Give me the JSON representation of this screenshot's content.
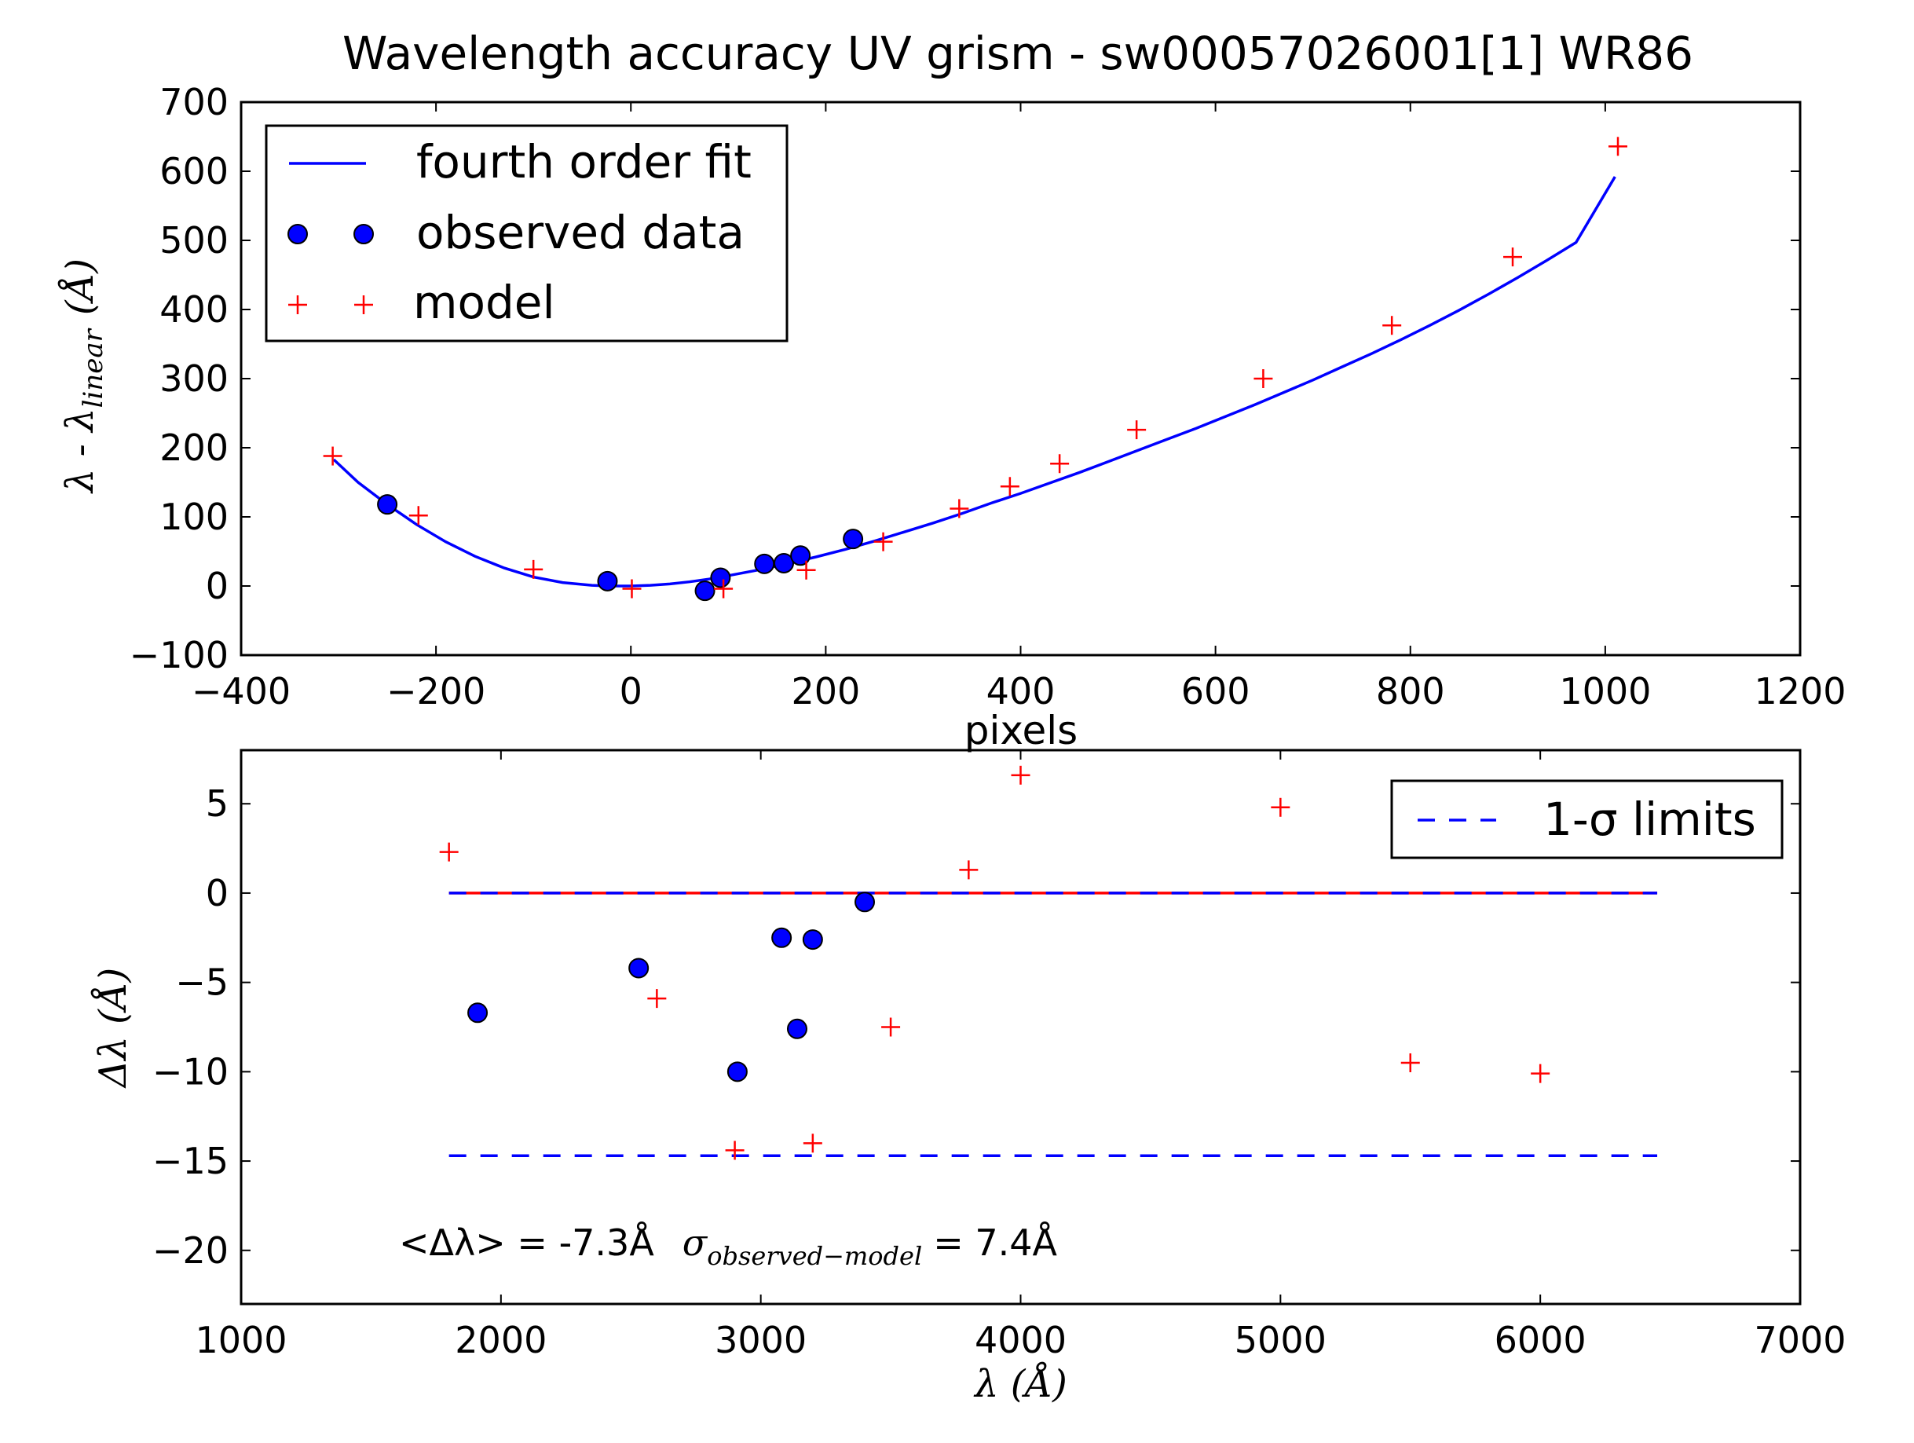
{
  "colors": {
    "fit": "#0000ff",
    "observed": "#0000ff",
    "model": "#ff0000",
    "axes": "#000000"
  },
  "chart_data": [
    {
      "type": "scatter",
      "title": "Wavelength accuracy UV grism - sw00057026001[1] WR86",
      "xlabel": "pixels",
      "ylabel_parts": {
        "lead": "λ - λ",
        "sub": "linear",
        "unit": "(Å)"
      },
      "xlim": [
        -400,
        1200
      ],
      "ylim": [
        -100,
        700
      ],
      "xticks": [
        "−400",
        "−200",
        "0",
        "200",
        "400",
        "600",
        "800",
        "1000",
        "1200"
      ],
      "yticks": [
        "700",
        "600",
        "500",
        "400",
        "300",
        "200",
        "100",
        "0",
        "−100"
      ],
      "grid": false,
      "legend_position": "top-left",
      "legend": [
        "fourth order fit",
        "observed data",
        "model"
      ],
      "series": [
        {
          "name": "fourth order fit",
          "kind": "line",
          "x": [
            -305,
            -280,
            -250,
            -220,
            -190,
            -160,
            -130,
            -100,
            -70,
            -40,
            -20,
            0,
            20,
            40,
            60,
            80,
            100,
            130,
            160,
            190,
            220,
            250,
            280,
            310,
            340,
            370,
            400,
            430,
            460,
            490,
            520,
            550,
            580,
            610,
            640,
            670,
            700,
            730,
            760,
            790,
            820,
            850,
            880,
            910,
            940,
            970,
            1010
          ],
          "y": [
            183,
            150,
            118,
            89,
            64,
            43,
            26,
            13,
            5,
            1,
            0,
            0,
            1,
            3,
            6,
            10,
            15,
            23,
            32,
            42,
            53,
            65,
            78,
            91,
            105,
            120,
            134,
            149,
            164,
            180,
            196,
            212,
            228,
            245,
            262,
            280,
            298,
            317,
            336,
            356,
            377,
            399,
            422,
            446,
            471,
            497,
            592
          ]
        },
        {
          "name": "observed data",
          "kind": "points",
          "x": [
            -250,
            -24,
            76,
            92,
            137,
            157,
            174,
            228
          ],
          "y": [
            118,
            7,
            -7,
            12,
            32,
            33,
            44,
            68
          ]
        },
        {
          "name": "model",
          "kind": "points",
          "x": [
            -306,
            -218,
            -100,
            1,
            95,
            180,
            259,
            337,
            389,
            440,
            519,
            649,
            781,
            905,
            1013
          ],
          "y": [
            188,
            102,
            24,
            -4,
            -4,
            23,
            64,
            112,
            144,
            177,
            226,
            300,
            377,
            476,
            636
          ]
        }
      ]
    },
    {
      "type": "scatter",
      "xlabel": "λ (Å)",
      "ylabel": "Δλ (Å)",
      "xlim": [
        1000,
        7000
      ],
      "ylim": [
        -23,
        8
      ],
      "xticks": [
        "1000",
        "2000",
        "3000",
        "4000",
        "5000",
        "6000",
        "7000"
      ],
      "yticks": [
        "5",
        "0",
        "−5",
        "−10",
        "−15",
        "−20"
      ],
      "grid": false,
      "legend_position": "top-right",
      "legend": [
        "1-σ limits"
      ],
      "annotation": "<Δλ> = -7.3Å   σobserved−model = 7.4Å",
      "annotation_parts": {
        "mean": "<Δλ> = -7.3Å",
        "sigma_sym": "σ",
        "sigma_sub": "observed−model",
        "sigma_val": "= 7.4Å"
      },
      "series": [
        {
          "name": "zero line",
          "kind": "hline",
          "x": [
            1800,
            6450
          ],
          "y": 0
        },
        {
          "name": "1-σ limits",
          "kind": "dashed",
          "y": [
            0,
            -14.7
          ],
          "x": [
            1800,
            6450
          ]
        },
        {
          "name": "observed data",
          "kind": "points",
          "x": [
            1910,
            2530,
            2910,
            3080,
            3140,
            3200,
            3400
          ],
          "y": [
            -6.7,
            -4.2,
            -10.0,
            -2.5,
            -7.6,
            -2.6,
            -0.5
          ]
        },
        {
          "name": "model",
          "kind": "points",
          "x": [
            1800,
            2600,
            2900,
            3200,
            3500,
            3800,
            4000,
            5000,
            5500,
            6000
          ],
          "y": [
            2.3,
            -5.9,
            -14.4,
            -14.0,
            -7.5,
            1.3,
            6.6,
            4.8,
            -9.5,
            -10.1
          ]
        }
      ]
    }
  ]
}
